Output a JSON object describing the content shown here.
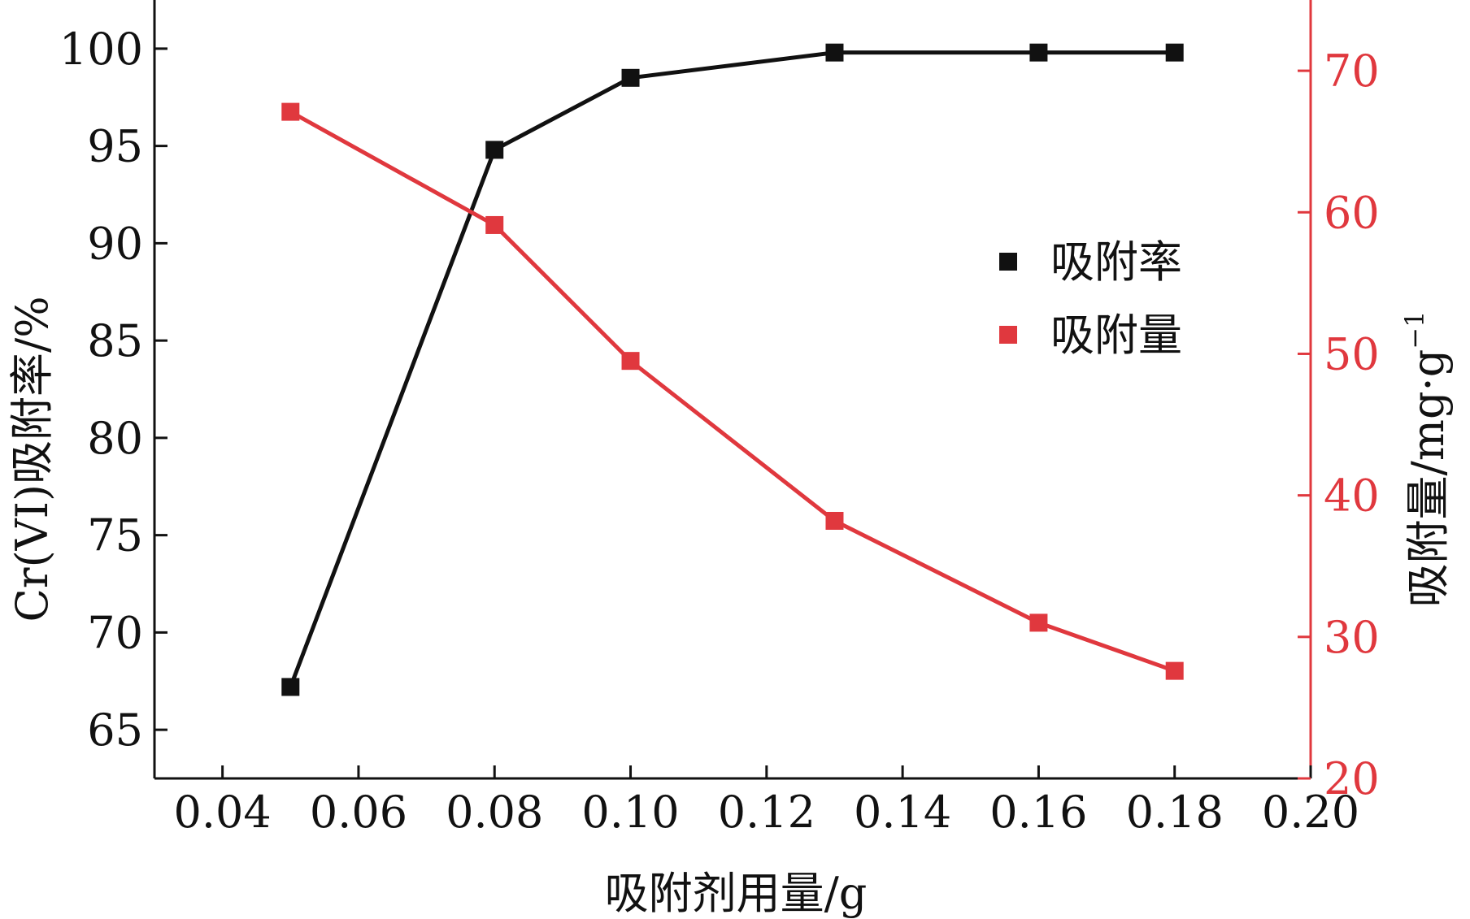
{
  "chart_data": {
    "type": "line",
    "x": [
      0.05,
      0.08,
      0.1,
      0.13,
      0.16,
      0.18
    ],
    "xlim": [
      0.03,
      0.2
    ],
    "x_ticks": [
      "0.04",
      "0.06",
      "0.08",
      "0.10",
      "0.12",
      "0.14",
      "0.16",
      "0.18",
      "0.20"
    ],
    "x_tick_values": [
      0.04,
      0.06,
      0.08,
      0.1,
      0.12,
      0.14,
      0.16,
      0.18,
      0.2
    ],
    "xlabel": "吸附剂用量/g",
    "y_left": {
      "label": "Cr(VI)吸附率/%",
      "lim": [
        62.5,
        102.5
      ],
      "ticks": [
        "65",
        "70",
        "75",
        "80",
        "85",
        "90",
        "95",
        "100"
      ],
      "tick_values": [
        65,
        70,
        75,
        80,
        85,
        90,
        95,
        100
      ],
      "color": "#111111"
    },
    "y_right": {
      "label": "吸附量/mg·g",
      "label_superscript": "−1",
      "lim": [
        20,
        75
      ],
      "ticks": [
        "20",
        "30",
        "40",
        "50",
        "60",
        "70"
      ],
      "tick_values": [
        20,
        30,
        40,
        50,
        60,
        70
      ],
      "color": "#e0383e"
    },
    "series": [
      {
        "name": "吸附率",
        "axis": "left",
        "color": "#111111",
        "marker": "square",
        "values": [
          67.2,
          94.8,
          98.5,
          99.8,
          99.8,
          99.8
        ]
      },
      {
        "name": "吸附量",
        "axis": "right",
        "color": "#e0383e",
        "marker": "square",
        "values": [
          67.1,
          59.1,
          49.5,
          38.2,
          31.0,
          27.6
        ]
      }
    ],
    "legend_position": "upper-right-inside",
    "grid": false
  }
}
